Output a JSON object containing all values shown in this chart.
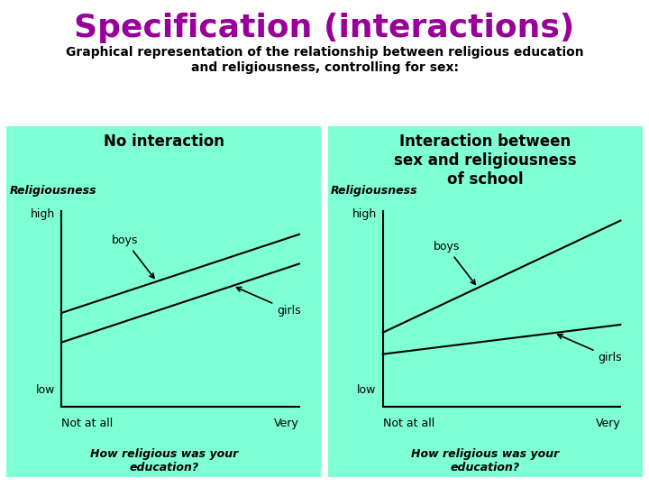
{
  "title": "Specification (interactions)",
  "subtitle": "Graphical representation of the relationship between religious education\nand religiousness, controlling for sex:",
  "title_color": "#990099",
  "subtitle_color": "#000000",
  "page_bg": "#ffffff",
  "panel_bg": "#7FFFD4",
  "left_panel_title": "No interaction",
  "right_panel_title": "Interaction between\nsex and religiousness\nof school",
  "panel_title_color": "#000000",
  "no_interaction": {
    "boys": {
      "x": [
        0,
        1
      ],
      "y": [
        0.48,
        0.88
      ]
    },
    "girls": {
      "x": [
        0,
        1
      ],
      "y": [
        0.33,
        0.73
      ]
    }
  },
  "interaction": {
    "boys": {
      "x": [
        0,
        1
      ],
      "y": [
        0.38,
        0.95
      ]
    },
    "girls": {
      "x": [
        0,
        1
      ],
      "y": [
        0.27,
        0.42
      ]
    }
  },
  "title_fontsize": 26,
  "subtitle_fontsize": 10,
  "panel_title_fontsize": 12,
  "line_label_fontsize": 9,
  "axis_label_fontsize": 9
}
